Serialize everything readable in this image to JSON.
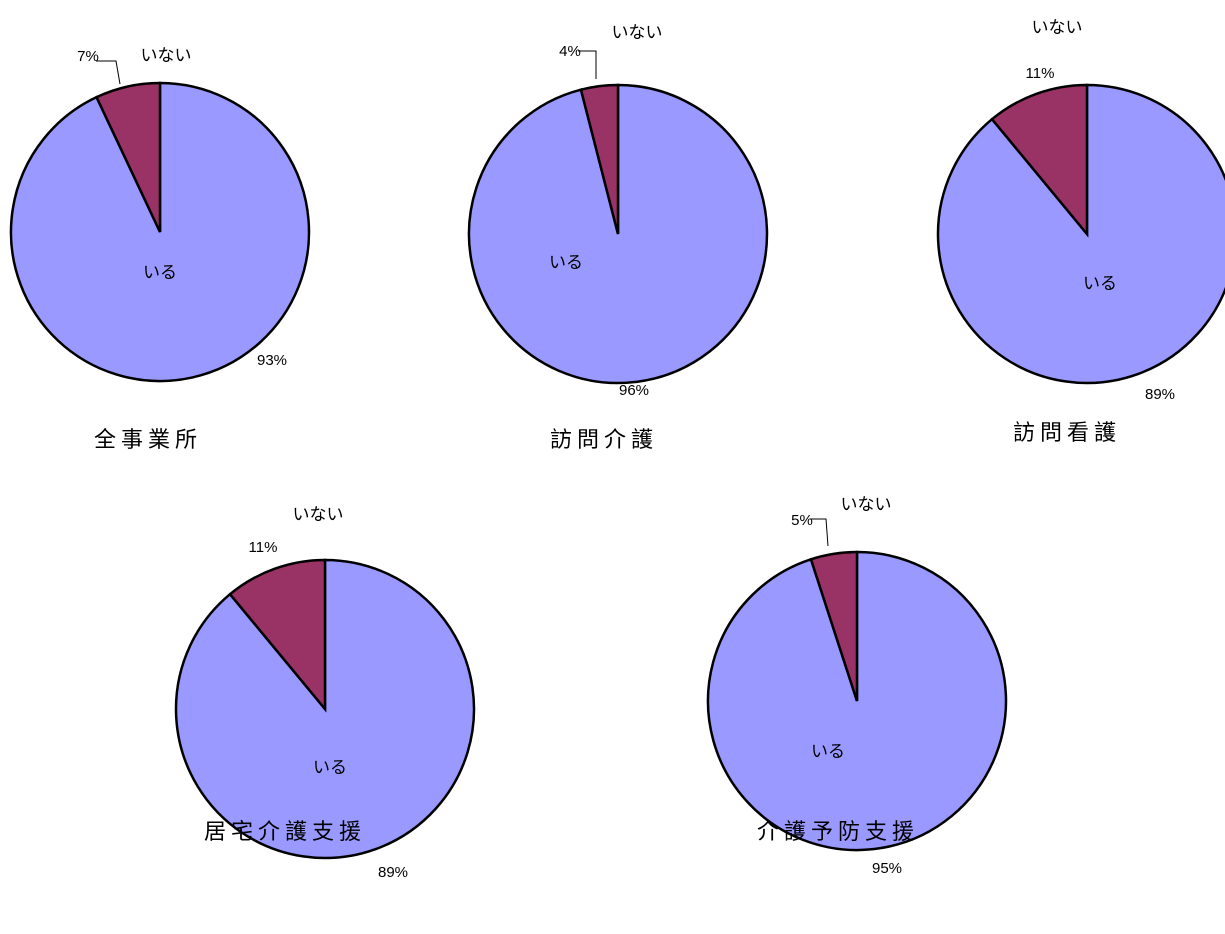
{
  "colors": {
    "iru": "#9999ff",
    "inai": "#993366",
    "outline": "#000000"
  },
  "chart_data": [
    {
      "type": "pie",
      "title": "全事業所",
      "slices": [
        {
          "label": "いる",
          "value": 93,
          "value_label": "93%"
        },
        {
          "label": "いない",
          "value": 7,
          "value_label": "7%"
        }
      ]
    },
    {
      "type": "pie",
      "title": "訪問介護",
      "slices": [
        {
          "label": "いる",
          "value": 96,
          "value_label": "96%"
        },
        {
          "label": "いない",
          "value": 4,
          "value_label": "4%"
        }
      ]
    },
    {
      "type": "pie",
      "title": "訪問看護",
      "slices": [
        {
          "label": "いる",
          "value": 89,
          "value_label": "89%"
        },
        {
          "label": "いない",
          "value": 11,
          "value_label": "11%"
        }
      ]
    },
    {
      "type": "pie",
      "title": "居宅介護支援",
      "slices": [
        {
          "label": "いる",
          "value": 89,
          "value_label": "89%"
        },
        {
          "label": "いない",
          "value": 11,
          "value_label": "11%"
        }
      ]
    },
    {
      "type": "pie",
      "title": "介護予防支援",
      "slices": [
        {
          "label": "いる",
          "value": 95,
          "value_label": "95%"
        },
        {
          "label": "いない",
          "value": 5,
          "value_label": "5%"
        }
      ]
    }
  ]
}
